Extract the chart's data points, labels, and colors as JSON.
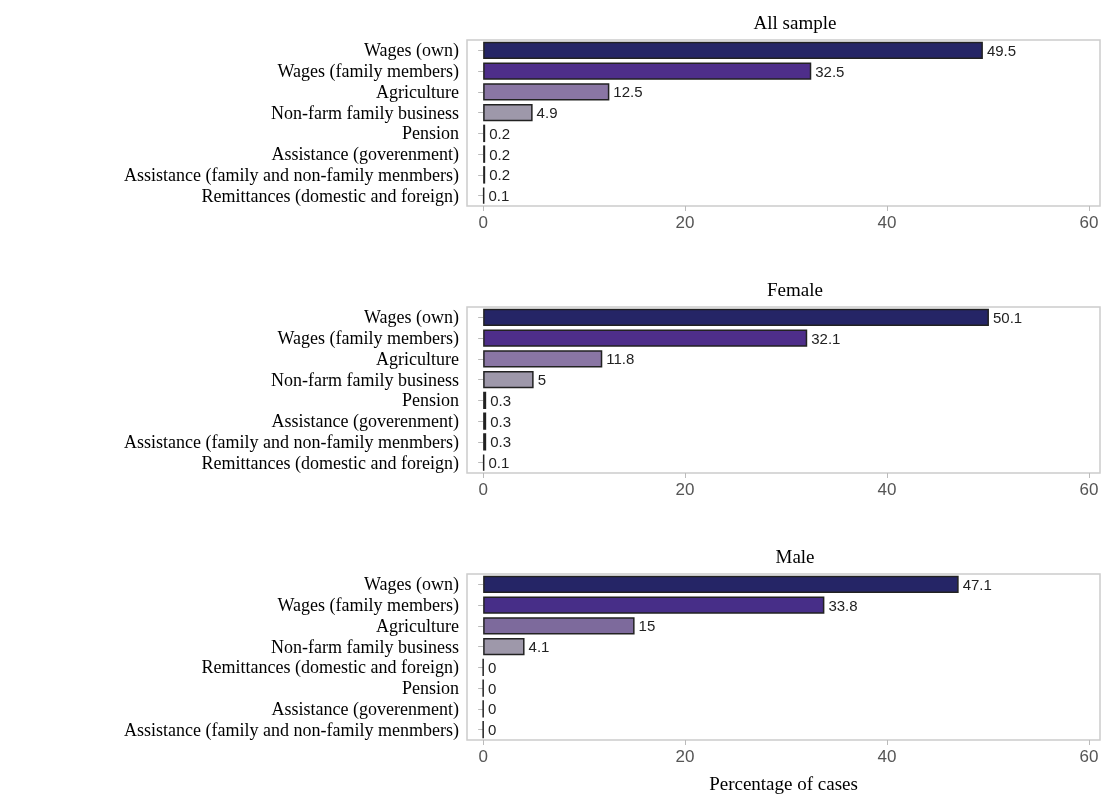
{
  "chart_data": [
    {
      "type": "bar",
      "orientation": "horizontal",
      "title": "All sample",
      "categories": [
        "Wages (own)",
        "Wages (family members)",
        "Agriculture",
        "Non-farm family business",
        "Pension",
        "Assistance (goverenment)",
        "Assistance (family and non-family menmbers)",
        "Remittances (domestic and foreign)"
      ],
      "values": [
        49.5,
        32.5,
        12.5,
        4.9,
        0.2,
        0.2,
        0.2,
        0.1
      ],
      "colors": [
        "#252566",
        "#4e2e8a",
        "#8a76a4",
        "#9e98aa",
        "#222222",
        "#222222",
        "#222222",
        "#222222"
      ],
      "xlim": [
        -1.6,
        61.1
      ],
      "xticks": [
        0,
        20,
        40,
        60
      ],
      "data_labels": true,
      "grid": false
    },
    {
      "type": "bar",
      "orientation": "horizontal",
      "title": "Female",
      "categories": [
        "Wages (own)",
        "Wages (family members)",
        "Agriculture",
        "Non-farm family business",
        "Pension",
        "Assistance (goverenment)",
        "Assistance (family and non-family menmbers)",
        "Remittances (domestic and foreign)"
      ],
      "values": [
        50.1,
        32.1,
        11.8,
        5,
        0.3,
        0.3,
        0.3,
        0.1
      ],
      "colors": [
        "#252566",
        "#4e2e8a",
        "#8a76a4",
        "#9e98aa",
        "#222222",
        "#222222",
        "#222222",
        "#222222"
      ],
      "xlim": [
        -1.6,
        61.1
      ],
      "xticks": [
        0,
        20,
        40,
        60
      ],
      "data_labels": true,
      "grid": false
    },
    {
      "type": "bar",
      "orientation": "horizontal",
      "title": "Male",
      "xlabel": "Percentage of cases",
      "categories": [
        "Wages (own)",
        "Wages (family members)",
        "Agriculture",
        "Non-farm family business",
        "Remittances (domestic and foreign)",
        "Pension",
        "Assistance (goverenment)",
        "Assistance (family and non-family menmbers)"
      ],
      "values": [
        47.1,
        33.8,
        15,
        4.1,
        0,
        0,
        0,
        0
      ],
      "colors": [
        "#252566",
        "#472e88",
        "#7d6a9c",
        "#9e98aa",
        "#222222",
        "#222222",
        "#222222",
        "#222222"
      ],
      "xlim": [
        -1.6,
        61.1
      ],
      "xticks": [
        0,
        20,
        40,
        60
      ],
      "data_labels": true,
      "grid": false
    }
  ]
}
